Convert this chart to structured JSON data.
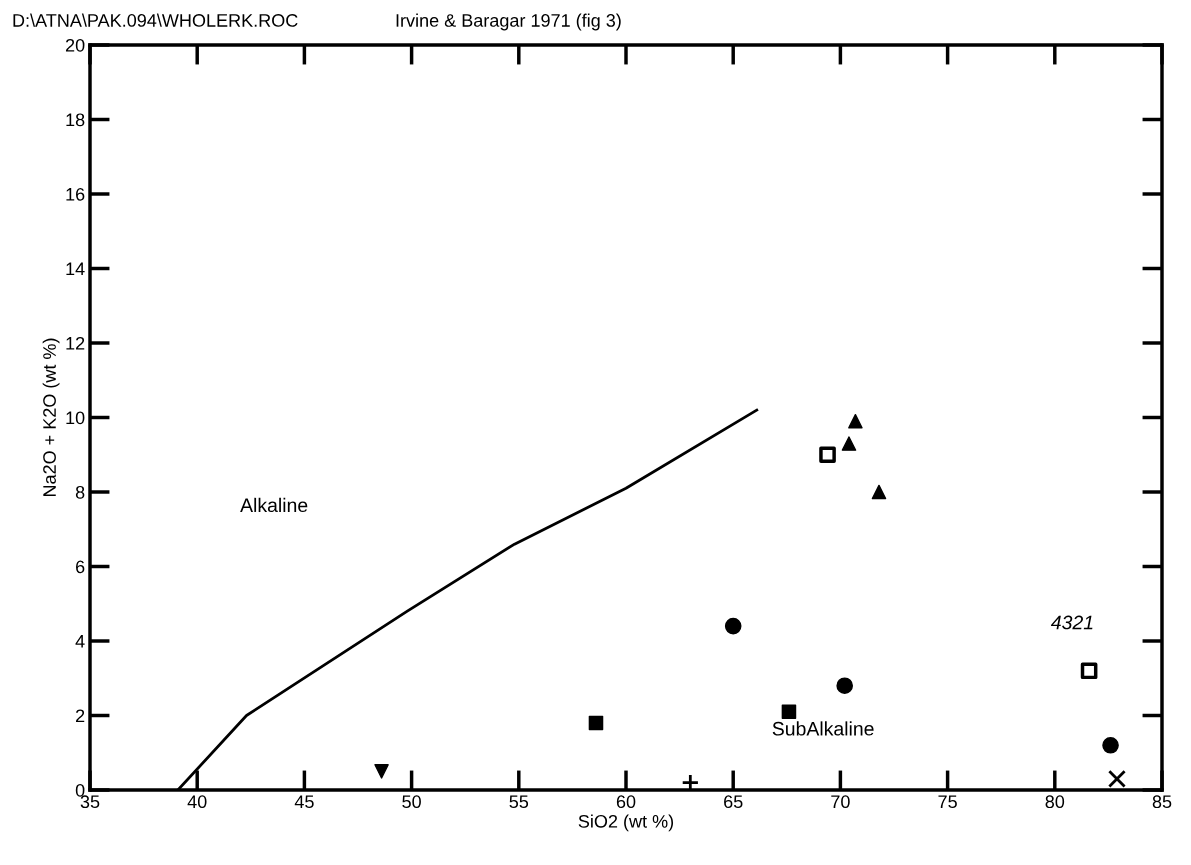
{
  "chart_data": {
    "type": "scatter",
    "title": "D:\\ATNA\\PAK.094\\WHOLERK.ROC",
    "subtitle": "Irvine & Baragar 1971 (fig 3)",
    "xlabel": "SiO2 (wt %)",
    "ylabel": "Na2O + K2O (wt %)",
    "xlim": [
      35,
      85
    ],
    "xticks": [
      35,
      40,
      45,
      50,
      55,
      60,
      65,
      70,
      75,
      80,
      85
    ],
    "ylim": [
      0,
      20
    ],
    "yticks": [
      0,
      2,
      4,
      6,
      8,
      10,
      12,
      14,
      16,
      18,
      20
    ],
    "grid": false,
    "series": [
      {
        "type": "line",
        "color": "#000000",
        "marker": "none",
        "line_style": "solid",
        "x": [
          39.1,
          42.3,
          49.8,
          54.8,
          60.0,
          66.1
        ],
        "values": [
          0,
          2.0,
          4.8,
          6.6,
          8.1,
          10.2
        ]
      },
      {
        "color": "#000000",
        "marker": "triangle",
        "x": [
          70.7,
          70.4,
          71.8
        ],
        "values": [
          9.9,
          9.3,
          8.0
        ]
      },
      {
        "color": "#000000",
        "marker": "square_open",
        "x": [
          69.4,
          81.6
        ],
        "values": [
          9.0,
          3.2
        ]
      },
      {
        "color": "#000000",
        "marker": "circle",
        "x": [
          65.0,
          70.2,
          82.6
        ],
        "values": [
          4.4,
          2.8,
          1.2
        ]
      },
      {
        "color": "#000000",
        "marker": "square",
        "x": [
          58.6,
          67.6
        ],
        "values": [
          1.8,
          2.1
        ]
      },
      {
        "color": "#000000",
        "marker": "triangle_down",
        "x": [
          48.6
        ],
        "values": [
          0.5
        ]
      },
      {
        "color": "#000000",
        "marker": "plus",
        "x": [
          63.0
        ],
        "values": [
          0.2
        ]
      },
      {
        "color": "#000000",
        "marker": "x",
        "x": [
          82.9
        ],
        "values": [
          0.3
        ]
      }
    ],
    "annotations": [
      "Alkaline",
      "SubAlkaline",
      {
        "text": "4321",
        "x": 81.6,
        "y": 3.2
      }
    ]
  }
}
